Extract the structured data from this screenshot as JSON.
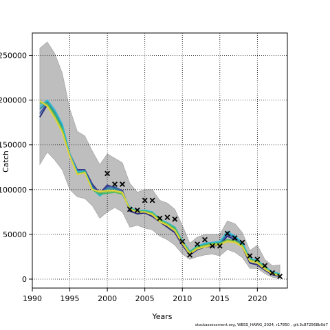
{
  "footer_text": "stockassessment.org, WBSS_HAWG_2024, r17850 , git:3c872568b0d7",
  "chart_data": {
    "type": "line",
    "xlabel": "Years",
    "ylabel": "Catch",
    "xlim": [
      1990,
      2024
    ],
    "ylim": [
      -10000,
      275000
    ],
    "x_ticks": [
      1990,
      1995,
      2000,
      2005,
      2010,
      2015,
      2020
    ],
    "y_ticks": [
      0,
      50000,
      100000,
      150000,
      200000,
      250000
    ],
    "y_tick_labels": [
      "0",
      "50000",
      "100000",
      "150000",
      "200000",
      "250000"
    ],
    "grid": true,
    "years": [
      1991,
      1992,
      1993,
      1994,
      1995,
      1996,
      1997,
      1998,
      1999,
      2000,
      2001,
      2002,
      2003,
      2004,
      2005,
      2006,
      2007,
      2008,
      2009,
      2010,
      2011,
      2012,
      2013,
      2014,
      2015,
      2016,
      2017,
      2018,
      2019,
      2020,
      2021,
      2022,
      2023
    ],
    "confidence_band": {
      "color": "#bebebe",
      "upper": [
        258000,
        265000,
        252000,
        230000,
        190000,
        165000,
        160000,
        143000,
        128000,
        140000,
        135000,
        130000,
        107000,
        97000,
        100000,
        100000,
        88000,
        85000,
        78000,
        60000,
        40000,
        47000,
        50000,
        50000,
        50000,
        65000,
        62000,
        52000,
        32000,
        38000,
        22000,
        15000,
        16000
      ],
      "lower": [
        128000,
        142000,
        133000,
        122000,
        100000,
        92000,
        90000,
        82000,
        68000,
        75000,
        80000,
        75000,
        58000,
        60000,
        57000,
        55000,
        48000,
        44000,
        38000,
        28000,
        22000,
        25000,
        27000,
        28000,
        26000,
        33000,
        30000,
        24000,
        12000,
        12000,
        6000,
        2000,
        1000
      ]
    },
    "series": [
      {
        "color": "#2b2d80",
        "values": [
          181000,
          195000,
          182000,
          168000,
          140000,
          122000,
          122000,
          106000,
          96000,
          105000,
          102000,
          99000,
          76000,
          73000,
          74000,
          70000,
          64000,
          58000,
          52000,
          38000,
          27000,
          33000,
          36000,
          37000,
          38000,
          48000,
          44000,
          36000,
          18000,
          16000,
          10000,
          5000,
          3000
        ]
      },
      {
        "color": "#3a5fa8",
        "values": [
          185000,
          197000,
          184000,
          170000,
          140000,
          121000,
          121000,
          104000,
          95000,
          103000,
          103000,
          98000,
          78000,
          75000,
          75000,
          72000,
          65000,
          60000,
          55000,
          40000,
          29000,
          35000,
          38000,
          39000,
          40000,
          50000,
          46000,
          38000,
          20000,
          18000,
          12000,
          6000,
          4000
        ]
      },
      {
        "color": "#2a8d9e",
        "values": [
          190000,
          198000,
          186000,
          171000,
          139000,
          120000,
          120000,
          102000,
          94000,
          101000,
          101000,
          97000,
          79000,
          76000,
          76000,
          74000,
          66000,
          62000,
          57000,
          42000,
          30000,
          36000,
          39000,
          40000,
          41000,
          52000,
          47000,
          40000,
          22000,
          20000,
          13000,
          7000,
          5000
        ]
      },
      {
        "color": "#33b9d6",
        "values": [
          193000,
          200000,
          189000,
          173000,
          140000,
          120000,
          121000,
          101000,
          93000,
          99000,
          99000,
          96000,
          80000,
          76000,
          77000,
          75000,
          67000,
          63000,
          58000,
          43000,
          31000,
          37000,
          40000,
          41000,
          42000,
          53000,
          48000,
          41000,
          23000,
          21000,
          14000,
          8000,
          6000
        ]
      },
      {
        "color": "#43b86a",
        "values": [
          197000,
          196000,
          184000,
          168000,
          138000,
          118000,
          120000,
          100000,
          95000,
          96000,
          97000,
          95000,
          79000,
          76000,
          76000,
          74000,
          66000,
          62000,
          57000,
          42000,
          30000,
          36000,
          38000,
          40000,
          40000,
          44000,
          43000,
          38000,
          22000,
          20000,
          13000,
          7000,
          5000
        ]
      },
      {
        "color": "#a7c83a",
        "values": [
          199000,
          194000,
          181000,
          165000,
          138000,
          117000,
          119000,
          100000,
          97000,
          98000,
          98000,
          96000,
          78000,
          75000,
          75000,
          73000,
          65000,
          61000,
          55000,
          41000,
          29000,
          35000,
          37000,
          39000,
          39000,
          43000,
          42000,
          37000,
          21000,
          19000,
          12000,
          6000,
          4000
        ]
      },
      {
        "color": "#e0d23c",
        "values": [
          199000,
          193000,
          180000,
          164000,
          137000,
          117000,
          119000,
          100000,
          98000,
          99000,
          99000,
          97000,
          78000,
          75000,
          75000,
          72000,
          64000,
          60000,
          54000,
          40000,
          28000,
          34000,
          36000,
          38000,
          38000,
          42000,
          41000,
          36000,
          20000,
          18000,
          11000,
          6000,
          4000
        ]
      }
    ],
    "observed": {
      "marker": "x",
      "x": [
        2000,
        2001,
        2002,
        2003,
        2004,
        2005,
        2006,
        2007,
        2008,
        2009,
        2010,
        2011,
        2012,
        2013,
        2014,
        2015,
        2016,
        2017,
        2018,
        2019,
        2020,
        2021,
        2022,
        2023
      ],
      "y": [
        118000,
        106000,
        106000,
        78000,
        77000,
        88000,
        88000,
        68000,
        69000,
        67000,
        42000,
        27000,
        39000,
        44000,
        37000,
        37000,
        51000,
        46000,
        41000,
        26000,
        22000,
        15000,
        7000,
        3000
      ]
    }
  }
}
